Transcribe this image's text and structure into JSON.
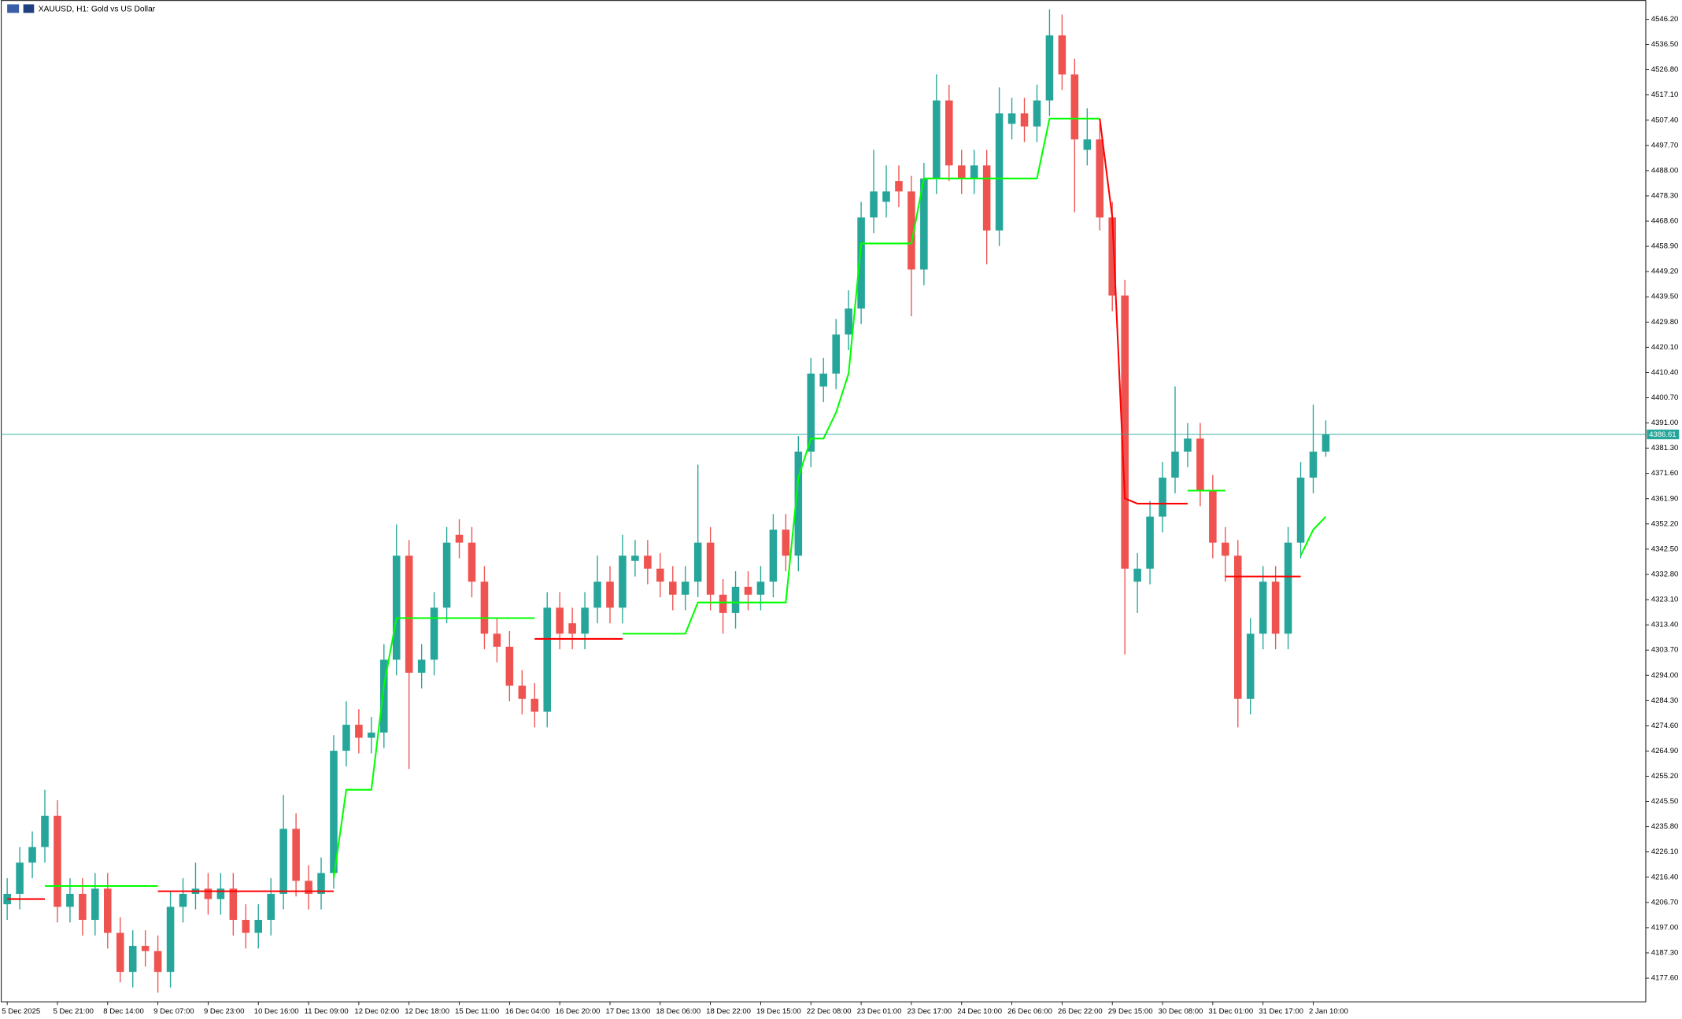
{
  "chart_data": {
    "type": "candlestick",
    "title": "XAUUSD, H1:  Gold vs US Dollar",
    "categories": [
      "5 Dec 2025",
      null,
      null,
      null,
      "5 Dec 21:00",
      null,
      null,
      null,
      "8 Dec 14:00",
      null,
      null,
      null,
      "9 Dec 07:00",
      null,
      null,
      null,
      "9 Dec 23:00",
      null,
      null,
      null,
      "10 Dec 16:00",
      null,
      null,
      null,
      "11 Dec 09:00",
      null,
      null,
      null,
      "12 Dec 02:00",
      null,
      null,
      null,
      "12 Dec 18:00",
      null,
      null,
      null,
      "15 Dec 11:00",
      null,
      null,
      null,
      "16 Dec 04:00",
      null,
      null,
      null,
      "16 Dec 20:00",
      null,
      null,
      null,
      "17 Dec 13:00",
      null,
      null,
      null,
      "18 Dec 06:00",
      null,
      null,
      null,
      "18 Dec 22:00",
      null,
      null,
      null,
      "19 Dec 15:00",
      null,
      null,
      null,
      "22 Dec 08:00",
      null,
      null,
      null,
      "23 Dec 01:00",
      null,
      null,
      null,
      "23 Dec 17:00",
      null,
      null,
      null,
      "24 Dec 10:00",
      null,
      null,
      null,
      "26 Dec 06:00",
      null,
      null,
      null,
      "26 Dec 22:00",
      null,
      null,
      null,
      "29 Dec 15:00",
      null,
      null,
      null,
      "30 Dec 08:00",
      null,
      null,
      null,
      "31 Dec 01:00",
      null,
      null,
      null,
      "31 Dec 17:00",
      null,
      null,
      null,
      "2 Jan 10:00",
      null
    ],
    "open": [
      4206,
      4210,
      4222,
      4228,
      4240,
      4205,
      4210,
      4200,
      4212,
      4195,
      4180,
      4190,
      4188,
      4180,
      4205,
      4210,
      4212,
      4208,
      4212,
      4200,
      4195,
      4200,
      4210,
      4235,
      4215,
      4210,
      4218,
      4265,
      4275,
      4270,
      4272,
      4300,
      4340,
      4295,
      4300,
      4320,
      4348,
      4345,
      4330,
      4310,
      4305,
      4290,
      4285,
      4280,
      4320,
      4314,
      4310,
      4320,
      4330,
      4320,
      4338,
      4340,
      4335,
      4330,
      4325,
      4330,
      4345,
      4325,
      4318,
      4328,
      4325,
      4330,
      4350,
      4340,
      4380,
      4405,
      4410,
      4425,
      4435,
      4470,
      4476,
      4484,
      4480,
      4450,
      4485,
      4515,
      4490,
      4485,
      4490,
      4465,
      4506,
      4510,
      4505,
      4515,
      4540,
      4525,
      4496,
      4500,
      4470,
      4440,
      4330,
      4335,
      4355,
      4370,
      4380,
      4385,
      4365,
      4345,
      4340,
      4285,
      4310,
      4330,
      4310,
      4345,
      4370,
      4380
    ],
    "high": [
      4216,
      4228,
      4234,
      4250,
      4246,
      4216,
      4216,
      4218,
      4218,
      4201,
      4196,
      4196,
      4194,
      4211,
      4216,
      4222,
      4218,
      4218,
      4218,
      4206,
      4206,
      4216,
      4248,
      4241,
      4221,
      4224,
      4271,
      4284,
      4281,
      4278,
      4306,
      4352,
      4346,
      4306,
      4326,
      4351,
      4354,
      4351,
      4336,
      4316,
      4311,
      4296,
      4291,
      4326,
      4326,
      4320,
      4326,
      4340,
      4336,
      4348,
      4346,
      4346,
      4341,
      4336,
      4336,
      4375,
      4351,
      4331,
      4334,
      4334,
      4336,
      4356,
      4356,
      4386,
      4416,
      4416,
      4431,
      4442,
      4476,
      4496,
      4490,
      4490,
      4486,
      4491,
      4525,
      4521,
      4496,
      4496,
      4496,
      4520,
      4516,
      4516,
      4521,
      4550,
      4548,
      4531,
      4512,
      4506,
      4476,
      4446,
      4341,
      4361,
      4376,
      4405,
      4391,
      4391,
      4371,
      4351,
      4346,
      4316,
      4336,
      4336,
      4351,
      4376,
      4398,
      4392
    ],
    "low": [
      4200,
      4204,
      4216,
      4222,
      4199,
      4199,
      4194,
      4194,
      4189,
      4176,
      4174,
      4182,
      4172,
      4174,
      4199,
      4204,
      4202,
      4202,
      4194,
      4189,
      4189,
      4194,
      4204,
      4209,
      4204,
      4204,
      4212,
      4259,
      4264,
      4264,
      4266,
      4294,
      4258,
      4289,
      4294,
      4314,
      4339,
      4324,
      4304,
      4299,
      4284,
      4279,
      4274,
      4274,
      4304,
      4304,
      4304,
      4314,
      4314,
      4314,
      4332,
      4329,
      4324,
      4319,
      4319,
      4324,
      4319,
      4310,
      4312,
      4319,
      4319,
      4324,
      4334,
      4334,
      4374,
      4399,
      4404,
      4419,
      4429,
      4464,
      4470,
      4474,
      4432,
      4444,
      4479,
      4484,
      4479,
      4479,
      4452,
      4459,
      4500,
      4499,
      4499,
      4509,
      4519,
      4472,
      4490,
      4465,
      4434,
      4302,
      4318,
      4329,
      4349,
      4364,
      4374,
      4359,
      4339,
      4330,
      4274,
      4279,
      4304,
      4304,
      4304,
      4339,
      4364,
      4378
    ],
    "close": [
      4210,
      4222,
      4228,
      4240,
      4205,
      4210,
      4200,
      4212,
      4195,
      4180,
      4190,
      4188,
      4180,
      4205,
      4210,
      4212,
      4208,
      4212,
      4200,
      4195,
      4200,
      4210,
      4235,
      4215,
      4210,
      4218,
      4265,
      4275,
      4270,
      4272,
      4300,
      4340,
      4295,
      4300,
      4320,
      4345,
      4345,
      4330,
      4310,
      4305,
      4290,
      4285,
      4280,
      4320,
      4310,
      4310,
      4320,
      4330,
      4320,
      4340,
      4340,
      4335,
      4330,
      4325,
      4330,
      4345,
      4325,
      4318,
      4328,
      4325,
      4330,
      4350,
      4340,
      4380,
      4410,
      4410,
      4425,
      4435,
      4470,
      4480,
      4480,
      4480,
      4450,
      4485,
      4515,
      4490,
      4485,
      4490,
      4465,
      4510,
      4510,
      4505,
      4515,
      4540,
      4525,
      4500,
      4500,
      4470,
      4440,
      4335,
      4335,
      4355,
      4370,
      4380,
      4385,
      4365,
      4345,
      4340,
      4285,
      4310,
      4330,
      4310,
      4345,
      4370,
      4380,
      4386.61
    ],
    "up_color": "#26a69a",
    "down_color": "#ef5350",
    "lines": [
      {
        "color": "#00ff00",
        "values": [
          null,
          null,
          null,
          4213,
          4213,
          4213,
          4213,
          4213,
          4213,
          4213,
          4213,
          4213,
          4213,
          null,
          null,
          null,
          null,
          null,
          null,
          null,
          null,
          null,
          null,
          null,
          null,
          null,
          4216,
          4250,
          4250,
          4250,
          4290,
          4316,
          4316,
          4316,
          4316,
          4316,
          4316,
          4316,
          4316,
          4316,
          4316,
          4316,
          4316,
          null,
          null,
          null,
          null,
          null,
          null,
          4310,
          4310,
          4310,
          4310,
          4310,
          4310,
          4322,
          4322,
          4322,
          4322,
          4322,
          4322,
          4322,
          4322,
          4370,
          4385,
          4385,
          4395,
          4410,
          4460,
          4460,
          4460,
          4460,
          4460,
          4485,
          4485,
          4485,
          4485,
          4485,
          4485,
          4485,
          4485,
          4485,
          4485,
          4508,
          4508,
          4508,
          4508,
          4508,
          null,
          null,
          null,
          null,
          null,
          null,
          4365,
          4365,
          4365,
          4365,
          null,
          null,
          null,
          null,
          null,
          4340,
          4350,
          4355
        ]
      },
      {
        "color": "#ff0000",
        "values": [
          4208,
          4208,
          4208,
          4208,
          null,
          null,
          null,
          null,
          null,
          null,
          null,
          null,
          4211,
          4211,
          4211,
          4211,
          4211,
          4211,
          4211,
          4211,
          4211,
          4211,
          4211,
          4211,
          4211,
          4211,
          4211,
          null,
          null,
          null,
          null,
          null,
          null,
          null,
          null,
          null,
          null,
          null,
          null,
          null,
          null,
          null,
          4308,
          4308,
          4308,
          4308,
          4308,
          4308,
          4308,
          4308,
          null,
          null,
          null,
          null,
          null,
          null,
          null,
          null,
          null,
          null,
          null,
          null,
          null,
          null,
          null,
          null,
          null,
          null,
          null,
          null,
          null,
          null,
          null,
          null,
          null,
          null,
          null,
          null,
          null,
          null,
          null,
          null,
          null,
          null,
          null,
          null,
          null,
          4508,
          4470,
          4362,
          4360,
          4360,
          4360,
          4360,
          4360,
          null,
          null,
          4332,
          4332,
          4332,
          4332,
          4332,
          4332,
          4332,
          null,
          null
        ]
      }
    ],
    "last_price": 4386.61,
    "last_price_color": "#26a69a",
    "ylim": [
      4168.5,
      4553.6
    ],
    "yticks": [
      {
        "value": 4546.2,
        "label": "4546.20"
      },
      {
        "value": 4536.5,
        "label": "4536.50"
      },
      {
        "value": 4526.8,
        "label": "4526.80"
      },
      {
        "value": 4517.1,
        "label": "4517.10"
      },
      {
        "value": 4507.4,
        "label": "4507.40"
      },
      {
        "value": 4497.7,
        "label": "4497.70"
      },
      {
        "value": 4488,
        "label": "4488.00"
      },
      {
        "value": 4478.3,
        "label": "4478.30"
      },
      {
        "value": 4468.6,
        "label": "4468.60"
      },
      {
        "value": 4458.9,
        "label": "4458.90"
      },
      {
        "value": 4449.2,
        "label": "4449.20"
      },
      {
        "value": 4439.5,
        "label": "4439.50"
      },
      {
        "value": 4429.8,
        "label": "4429.80"
      },
      {
        "value": 4420.1,
        "label": "4420.10"
      },
      {
        "value": 4410.4,
        "label": "4410.40"
      },
      {
        "value": 4400.7,
        "label": "4400.70"
      },
      {
        "value": 4391,
        "label": "4391.00"
      },
      {
        "value": 4381.3,
        "label": "4381.30"
      },
      {
        "value": 4371.6,
        "label": "4371.60"
      },
      {
        "value": 4361.9,
        "label": "4361.90"
      },
      {
        "value": 4352.2,
        "label": "4352.20"
      },
      {
        "value": 4342.5,
        "label": "4342.50"
      },
      {
        "value": 4332.8,
        "label": "4332.80"
      },
      {
        "value": 4323.1,
        "label": "4323.10"
      },
      {
        "value": 4313.4,
        "label": "4313.40"
      },
      {
        "value": 4303.7,
        "label": "4303.70"
      },
      {
        "value": 4294,
        "label": "4294.00"
      },
      {
        "value": 4284.3,
        "label": "4284.30"
      },
      {
        "value": 4274.6,
        "label": "4274.60"
      },
      {
        "value": 4264.9,
        "label": "4264.90"
      },
      {
        "value": 4255.2,
        "label": "4255.20"
      },
      {
        "value": 4245.5,
        "label": "4245.50"
      },
      {
        "value": 4235.8,
        "label": "4235.80"
      },
      {
        "value": 4226.1,
        "label": "4226.10"
      },
      {
        "value": 4216.4,
        "label": "4216.40"
      },
      {
        "value": 4206.7,
        "label": "4206.70"
      },
      {
        "value": 4197,
        "label": "4197.00"
      },
      {
        "value": 4187.3,
        "label": "4187.30"
      },
      {
        "value": 4177.6,
        "label": "4177.60"
      }
    ]
  }
}
